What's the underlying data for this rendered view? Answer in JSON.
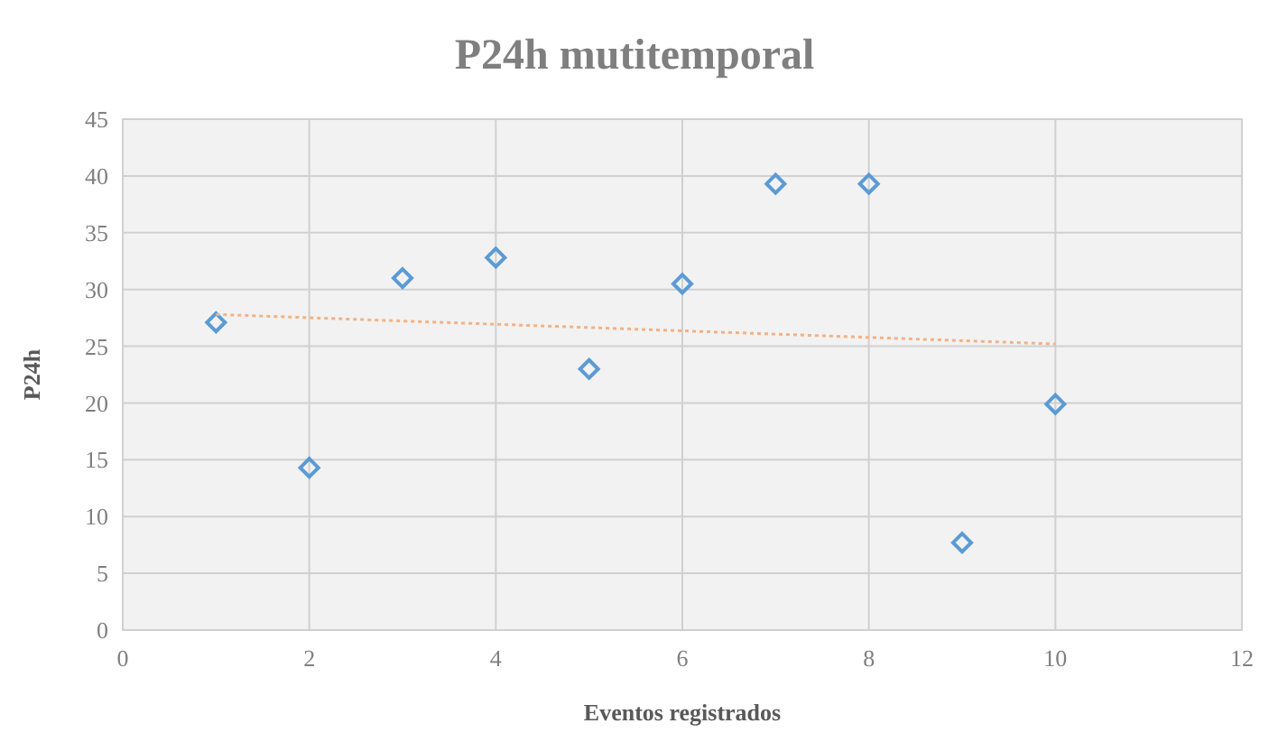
{
  "chart_data": {
    "type": "scatter",
    "title": "P24h mutitemporal",
    "xlabel": "Eventos registrados",
    "ylabel": "P24h",
    "xlim": [
      0,
      12
    ],
    "xticks": [
      0,
      2,
      4,
      6,
      8,
      10,
      12
    ],
    "ylim": [
      0,
      45
    ],
    "yticks": [
      0,
      5,
      10,
      15,
      20,
      25,
      30,
      35,
      40,
      45
    ],
    "grid": true,
    "series": [
      {
        "type": "scatter",
        "color": "#5b9bd5",
        "marker": "diamond",
        "x": [
          1,
          2,
          3,
          4,
          5,
          6,
          7,
          8,
          9,
          10
        ],
        "values": [
          27.1,
          14.3,
          31,
          32.8,
          23,
          30.5,
          39.3,
          39.3,
          7.7,
          19.9
        ]
      },
      {
        "type": "line",
        "color": "#f4b183",
        "marker": "none",
        "line_style": "dotted",
        "x": [
          1,
          10
        ],
        "values": [
          27.8,
          25.2
        ]
      }
    ]
  }
}
